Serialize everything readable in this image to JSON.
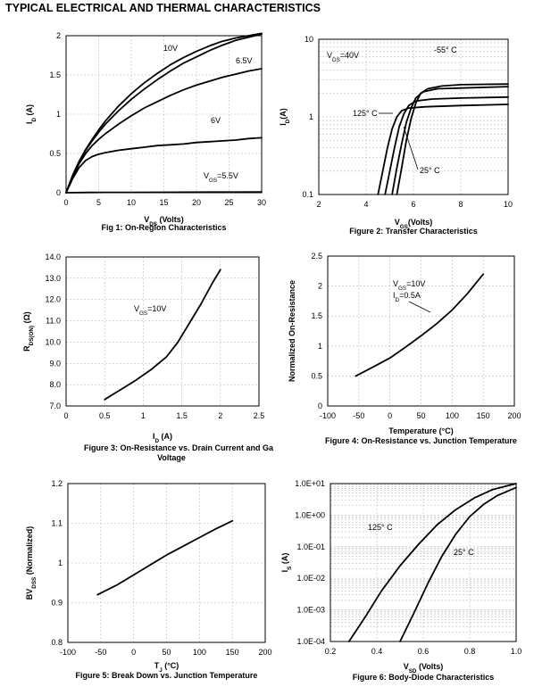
{
  "page_title": "TYPICAL ELECTRICAL AND THERMAL CHARACTERISTICS",
  "chart_data": [
    {
      "id": "fig1",
      "type": "line",
      "caption": "Fig 1: On-Region Characteristics",
      "xlabel": "V<sub>DS</sub> (Volts)",
      "ylabel": "I<sub>D</sub> (A)",
      "xlim": [
        0,
        30
      ],
      "ylim": [
        0,
        2
      ],
      "grid": true,
      "scale": "linear",
      "xticks": [
        0,
        5,
        10,
        15,
        20,
        25,
        30
      ],
      "yticks": [
        0,
        0.5,
        1,
        1.5,
        2
      ],
      "series": [
        {
          "name": "10V",
          "x": [
            0,
            1,
            2,
            3,
            4,
            5,
            6,
            8,
            10,
            12,
            14,
            16,
            18,
            20,
            22,
            24,
            26,
            28,
            30
          ],
          "y": [
            0,
            0.22,
            0.4,
            0.55,
            0.68,
            0.8,
            0.91,
            1.1,
            1.26,
            1.4,
            1.52,
            1.63,
            1.72,
            1.8,
            1.87,
            1.93,
            1.97,
            2.0,
            2.03
          ]
        },
        {
          "name": "",
          "x": [
            0,
            1,
            2,
            3,
            4,
            5,
            6,
            8,
            10,
            12,
            14,
            16,
            18,
            20,
            22,
            24,
            26,
            28,
            30
          ],
          "y": [
            0,
            0.21,
            0.39,
            0.54,
            0.66,
            0.77,
            0.87,
            1.04,
            1.19,
            1.32,
            1.44,
            1.55,
            1.65,
            1.73,
            1.81,
            1.88,
            1.94,
            1.98,
            2.02
          ]
        },
        {
          "name": "6.5V",
          "x": [
            0,
            1,
            2,
            3,
            4,
            5,
            6,
            8,
            10,
            12,
            14,
            16,
            18,
            20,
            22,
            24,
            26,
            28,
            30
          ],
          "y": [
            0,
            0.2,
            0.37,
            0.5,
            0.6,
            0.68,
            0.75,
            0.87,
            0.98,
            1.08,
            1.16,
            1.24,
            1.31,
            1.37,
            1.42,
            1.47,
            1.51,
            1.55,
            1.58
          ]
        },
        {
          "name": "6V",
          "x": [
            0,
            1,
            2,
            3,
            4,
            5,
            6,
            8,
            10,
            12,
            14,
            16,
            18,
            20,
            22,
            24,
            26,
            28,
            30
          ],
          "y": [
            0,
            0.18,
            0.32,
            0.41,
            0.46,
            0.49,
            0.51,
            0.54,
            0.56,
            0.58,
            0.6,
            0.61,
            0.62,
            0.64,
            0.65,
            0.66,
            0.67,
            0.69,
            0.7
          ]
        },
        {
          "name": "V<sub>GS</sub>=5.5V",
          "x": [
            0,
            2,
            4,
            6,
            10,
            14,
            18,
            22,
            26,
            30
          ],
          "y": [
            0,
            0.002,
            0.003,
            0.004,
            0.005,
            0.006,
            0.007,
            0.008,
            0.008,
            0.009
          ]
        }
      ],
      "annotations": [
        "10V",
        "6.5V",
        "6V",
        "V<sub>GS</sub>=5.5V"
      ]
    },
    {
      "id": "fig2",
      "type": "line",
      "caption": "Figure 2: Transfer Characteristics",
      "xlabel": "V<sub>GS</sub>(Volts)",
      "ylabel": "I<sub>D</sub>(A)",
      "xlim": [
        2,
        10
      ],
      "ylim": [
        0.1,
        10
      ],
      "scale": "log-y",
      "grid": true,
      "xticks": [
        2,
        4,
        6,
        8,
        10
      ],
      "yticks": [
        0.1,
        1,
        10
      ],
      "series": [
        {
          "name": "125° C",
          "x": [
            4.5,
            4.7,
            4.9,
            5.1,
            5.3,
            5.5,
            5.8,
            6.5,
            8,
            10
          ],
          "y": [
            0.1,
            0.2,
            0.4,
            0.7,
            1.0,
            1.2,
            1.3,
            1.35,
            1.4,
            1.45
          ]
        },
        {
          "name": "",
          "x": [
            4.8,
            5.0,
            5.2,
            5.4,
            5.6,
            5.8,
            6.1,
            6.8,
            8,
            10
          ],
          "y": [
            0.1,
            0.2,
            0.4,
            0.75,
            1.1,
            1.4,
            1.6,
            1.7,
            1.75,
            1.8
          ]
        },
        {
          "name": "25° C",
          "x": [
            5.1,
            5.3,
            5.5,
            5.7,
            5.9,
            6.1,
            6.4,
            7,
            8,
            10
          ],
          "y": [
            0.1,
            0.22,
            0.45,
            0.85,
            1.3,
            1.75,
            2.1,
            2.3,
            2.35,
            2.45
          ]
        },
        {
          "name": "-55° C",
          "x": [
            5.3,
            5.5,
            5.7,
            5.9,
            6.1,
            6.3,
            6.6,
            7.2,
            8,
            10
          ],
          "y": [
            0.1,
            0.22,
            0.5,
            0.95,
            1.5,
            2.0,
            2.3,
            2.5,
            2.6,
            2.65
          ]
        }
      ],
      "annotations": [
        "V<sub>DS</sub>=40V",
        "-55° C",
        "125° C",
        "25° C"
      ]
    },
    {
      "id": "fig3",
      "type": "line",
      "caption": "Figure 3: On-Resistance vs. Drain Current and Ga Voltage",
      "xlabel": "I<sub>D</sub> (A)",
      "ylabel": "R<sub>DS(ON)</sub> (Ω)",
      "xlim": [
        0,
        2.5
      ],
      "ylim": [
        7,
        14
      ],
      "grid": true,
      "scale": "linear",
      "xticks": [
        0,
        0.5,
        1,
        1.5,
        2,
        2.5
      ],
      "yticks": [
        7.0,
        8.0,
        9.0,
        10.0,
        11.0,
        12.0,
        13.0,
        14.0
      ],
      "series": [
        {
          "name": "V<sub>GS</sub>=10V",
          "x": [
            0.5,
            0.7,
            0.9,
            1.1,
            1.3,
            1.45,
            1.6,
            1.75,
            1.9,
            2.0
          ],
          "y": [
            7.3,
            7.75,
            8.2,
            8.7,
            9.3,
            10.0,
            10.9,
            11.8,
            12.8,
            13.4
          ]
        }
      ],
      "annotations": [
        "V<sub>GS</sub>=10V"
      ]
    },
    {
      "id": "fig4",
      "type": "line",
      "caption": "Figure 4: On-Resistance vs. Junction Temperature",
      "xlabel": "Temperature (°C)",
      "ylabel": "Normalized On-Resistance",
      "xlim": [
        -100,
        200
      ],
      "ylim": [
        0,
        2.5
      ],
      "grid": true,
      "scale": "linear",
      "xticks": [
        -100,
        -50,
        0,
        50,
        100,
        150,
        200
      ],
      "yticks": [
        0,
        0.5,
        1,
        1.5,
        2,
        2.5
      ],
      "series": [
        {
          "name": "",
          "x": [
            -55,
            -25,
            0,
            25,
            50,
            75,
            100,
            125,
            150
          ],
          "y": [
            0.5,
            0.66,
            0.8,
            0.98,
            1.17,
            1.37,
            1.6,
            1.88,
            2.2
          ]
        }
      ],
      "annotations": [
        "V<sub>GS</sub>=10V",
        "I<sub>D</sub>=0.5A"
      ]
    },
    {
      "id": "fig5",
      "type": "line",
      "caption": "Figure 5: Break Down vs. Junction Temperature",
      "xlabel": "T<sub>J</sub> (°C)",
      "ylabel": "BV<sub>DSS</sub> (Normalized)",
      "xlim": [
        -100,
        200
      ],
      "ylim": [
        0.8,
        1.2
      ],
      "grid": true,
      "scale": "linear",
      "xticks": [
        -100,
        -50,
        0,
        50,
        100,
        150,
        200
      ],
      "yticks": [
        0.8,
        0.9,
        1,
        1.1,
        1.2
      ],
      "series": [
        {
          "name": "",
          "x": [
            -55,
            -25,
            0,
            25,
            50,
            75,
            100,
            125,
            150
          ],
          "y": [
            0.92,
            0.945,
            0.97,
            0.995,
            1.02,
            1.042,
            1.064,
            1.086,
            1.106
          ]
        }
      ]
    },
    {
      "id": "fig6",
      "type": "line",
      "caption": "Figure 6: Body-Diode Characteristics",
      "xlabel": "V<sub>SD</sub> (Volts)",
      "ylabel": "I<sub>S</sub> (A)",
      "xlim": [
        0.2,
        1.0
      ],
      "ylim": [
        0.0001,
        10
      ],
      "scale": "log-y",
      "grid": true,
      "xticks": [
        0.2,
        0.4,
        0.6,
        0.8,
        1.0
      ],
      "xticklabels": [
        "0.2",
        "0.4",
        "0.6",
        "0.8",
        "1.0"
      ],
      "yticks": [
        0.0001,
        0.001,
        0.01,
        0.1,
        1,
        10
      ],
      "yticklabels": [
        "1.0E-04",
        "1.0E-03",
        "1.0E-02",
        "1.0E-01",
        "1.0E+00",
        "1.0E+01"
      ],
      "series": [
        {
          "name": "125° C",
          "x": [
            0.28,
            0.35,
            0.42,
            0.5,
            0.58,
            0.66,
            0.74,
            0.82,
            0.9,
            1.0
          ],
          "y": [
            0.0001,
            0.0006,
            0.004,
            0.025,
            0.12,
            0.5,
            1.5,
            3.5,
            6.5,
            10
          ]
        },
        {
          "name": "25° C",
          "x": [
            0.5,
            0.56,
            0.62,
            0.68,
            0.74,
            0.8,
            0.86,
            0.92,
            1.0
          ],
          "y": [
            0.0001,
            0.0008,
            0.007,
            0.05,
            0.25,
            0.9,
            2.2,
            4.2,
            7.5
          ]
        }
      ],
      "annotations": [
        "125° C",
        "25° C"
      ]
    }
  ]
}
